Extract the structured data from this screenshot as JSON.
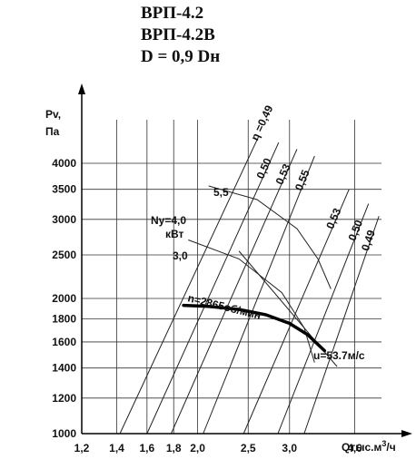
{
  "chart_data": {
    "type": "line",
    "title": [
      "ВРП-4.2",
      "ВРП-4.2В",
      "D = 0,9 Dн"
    ],
    "xlabel": "Qтыс.м³/ч",
    "ylabel": "Pv,\nПа",
    "x_scale": "log",
    "y_scale": "log",
    "xlim": [
      1.2,
      4.5
    ],
    "ylim": [
      1000,
      5000
    ],
    "grid": true,
    "xticks": [
      {
        "value": 1.2,
        "label": "1,2"
      },
      {
        "value": 1.4,
        "label": "1,4"
      },
      {
        "value": 1.6,
        "label": "1,6"
      },
      {
        "value": 1.8,
        "label": "1,8"
      },
      {
        "value": 2.0,
        "label": "2,0"
      },
      {
        "value": 2.5,
        "label": "2,5"
      },
      {
        "value": 3.0,
        "label": "3,0"
      },
      {
        "value": 4.0,
        "label": "4,0"
      }
    ],
    "yticks": [
      {
        "value": 1000,
        "label": "1000"
      },
      {
        "value": 1200,
        "label": "1200"
      },
      {
        "value": 1400,
        "label": "1400"
      },
      {
        "value": 1600,
        "label": "1600"
      },
      {
        "value": 1800,
        "label": "1800"
      },
      {
        "value": 2000,
        "label": "2000"
      },
      {
        "value": 2500,
        "label": "2500"
      },
      {
        "value": 3000,
        "label": "3000"
      },
      {
        "value": 3500,
        "label": "3500"
      },
      {
        "value": 4000,
        "label": "4000"
      }
    ],
    "efficiency_lines": [
      {
        "label": "η =0,49",
        "points": [
          [
            1.42,
            1000
          ],
          [
            2.62,
            4600
          ]
        ]
      },
      {
        "label": "0,50",
        "points": [
          [
            1.6,
            1000
          ],
          [
            2.86,
            4450
          ]
        ]
      },
      {
        "label": "0,53",
        "points": [
          [
            1.78,
            1000
          ],
          [
            3.1,
            4300
          ]
        ]
      },
      {
        "label": "0,55",
        "points": [
          [
            2.05,
            1000
          ],
          [
            3.35,
            4150
          ]
        ]
      },
      {
        "label": "0,53",
        "points": [
          [
            2.45,
            1000
          ],
          [
            3.9,
            3500
          ]
        ]
      },
      {
        "label": "0,50",
        "points": [
          [
            2.85,
            1000
          ],
          [
            4.25,
            3250
          ]
        ]
      },
      {
        "label": "0,49",
        "points": [
          [
            3.2,
            1000
          ],
          [
            4.45,
            3050
          ]
        ]
      }
    ],
    "power_curves": [
      {
        "label": "5,5",
        "points": [
          [
            2.1,
            3560
          ],
          [
            2.6,
            3320
          ],
          [
            3.1,
            2860
          ],
          [
            3.4,
            2450
          ],
          [
            3.6,
            2100
          ]
        ]
      },
      {
        "label": "3,0",
        "points": [
          [
            1.92,
            2700
          ],
          [
            2.4,
            2450
          ],
          [
            2.9,
            2060
          ],
          [
            3.2,
            1720
          ],
          [
            3.35,
            1440
          ]
        ]
      }
    ],
    "power_axis_label": "Ny=4,0\nкВт",
    "fan_curve": {
      "label": "n=2865об/мин",
      "points": [
        [
          1.88,
          1930
        ],
        [
          2.1,
          1920
        ],
        [
          2.4,
          1890
        ],
        [
          2.7,
          1840
        ],
        [
          3.0,
          1760
        ],
        [
          3.25,
          1660
        ],
        [
          3.5,
          1530
        ]
      ]
    },
    "velocity_label": "u=53.7м/с",
    "velocity_line": {
      "points": [
        [
          2.4,
          2550
        ],
        [
          3.7,
          1410
        ]
      ]
    }
  }
}
